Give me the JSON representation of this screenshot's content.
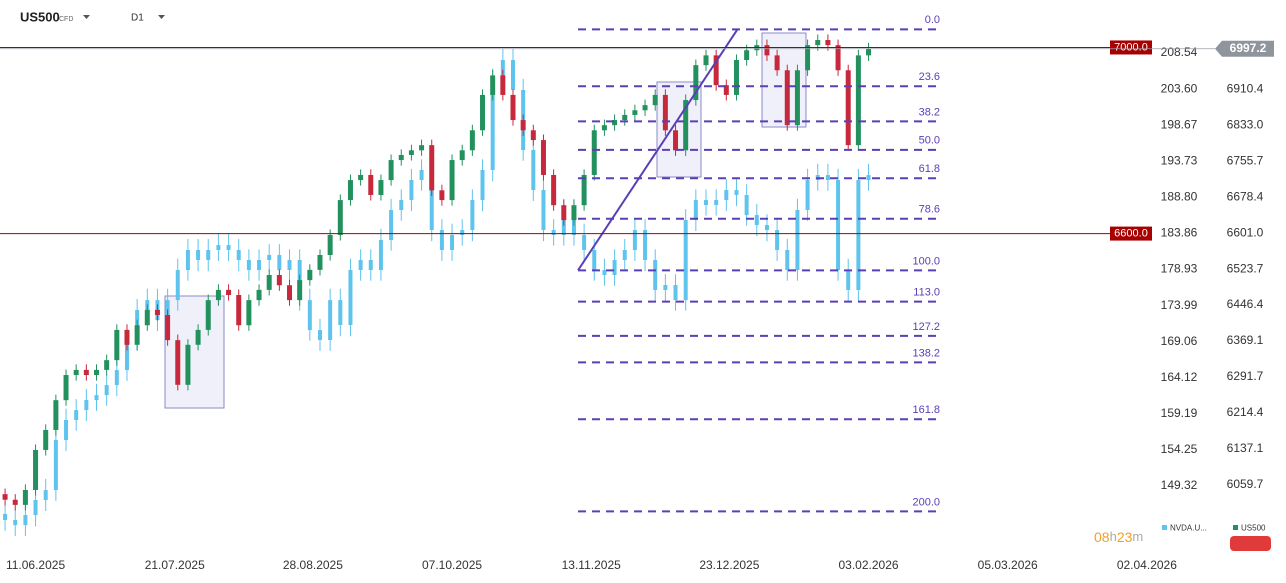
{
  "chart_data": {
    "type": "candlestick",
    "title": "US500",
    "title_note": "CFD",
    "timeframe": "D1",
    "xlim": [
      -0.5,
      113.2
    ],
    "xticks": [
      {
        "value": 3,
        "label": "11.06.2025"
      },
      {
        "value": 16.7,
        "label": "21.07.2025"
      },
      {
        "value": 30.3,
        "label": "28.08.2025"
      },
      {
        "value": 44,
        "label": "07.10.2025"
      },
      {
        "value": 57.7,
        "label": "13.11.2025"
      },
      {
        "value": 71.3,
        "label": "23.12.2025"
      },
      {
        "value": 85,
        "label": "03.02.2026"
      },
      {
        "value": 98.7,
        "label": "05.03.2026"
      },
      {
        "value": 112.4,
        "label": "02.04.2026"
      }
    ],
    "ylim": [
      140.57,
      215.79
    ],
    "yticks": [
      208.54,
      {
        "value": 203.6,
        "label": "203.60"
      },
      198.67,
      193.73,
      {
        "value": 188.8,
        "label": "188.80"
      },
      183.86,
      178.93,
      173.99,
      169.06,
      164.12,
      159.19,
      154.25,
      149.32
    ],
    "y2lim": [
      5920,
      7102
    ],
    "y2ticks": [
      6910.4,
      {
        "value": 6833,
        "label": "6833.0"
      },
      6755.7,
      6678.4,
      {
        "value": 6601,
        "label": "6601.0"
      },
      6523.7,
      6446.4,
      6369.1,
      6291.7,
      6214.4,
      6137.1,
      6059.7
    ],
    "series": [
      {
        "name": "NVDA.U...",
        "color": "#5ec4ee",
        "axis": "y",
        "ohlc": [
          [
            145.5,
            147.0,
            143.2,
            144.67
          ],
          [
            144.67,
            146.2,
            142.5,
            143.98
          ],
          [
            143.98,
            146.9,
            142.5,
            145.35
          ],
          [
            145.35,
            148.9,
            143.8,
            147.41
          ],
          [
            147.41,
            150.3,
            145.9,
            148.77
          ],
          [
            148.77,
            157.1,
            147.3,
            155.61
          ],
          [
            155.61,
            159.9,
            154.1,
            158.35
          ],
          [
            158.35,
            161.2,
            156.9,
            159.71
          ],
          [
            159.71,
            162.6,
            158.2,
            161.08
          ],
          [
            161.08,
            163.3,
            159.6,
            161.76
          ],
          [
            161.76,
            164.6,
            160.3,
            163.13
          ],
          [
            163.13,
            166.7,
            161.6,
            165.18
          ],
          [
            165.18,
            170.8,
            163.7,
            169.29
          ],
          [
            169.29,
            174.9,
            167.8,
            173.39
          ],
          [
            173.39,
            176.3,
            171.9,
            174.75
          ],
          [
            174.75,
            176.3,
            170.5,
            172.02
          ],
          [
            172.02,
            176.3,
            170.5,
            174.75
          ],
          [
            174.75,
            180.4,
            173.3,
            178.86
          ],
          [
            178.86,
            183.1,
            177.4,
            181.6
          ],
          [
            181.6,
            183.1,
            178.7,
            180.23
          ],
          [
            180.23,
            183.1,
            178.7,
            181.6
          ],
          [
            181.6,
            183.8,
            180.1,
            182.28
          ],
          [
            182.28,
            183.8,
            180.1,
            181.6
          ],
          [
            181.6,
            183.1,
            178.7,
            180.23
          ],
          [
            180.23,
            181.7,
            177.4,
            178.86
          ],
          [
            178.86,
            181.7,
            177.4,
            180.23
          ],
          [
            180.23,
            182.4,
            178.7,
            180.91
          ],
          [
            180.91,
            182.4,
            177.4,
            178.86
          ],
          [
            178.86,
            181.7,
            177.4,
            180.23
          ],
          [
            180.23,
            181.7,
            173.3,
            174.75
          ],
          [
            174.75,
            176.3,
            169.2,
            170.65
          ],
          [
            170.65,
            172.2,
            167.8,
            169.29
          ],
          [
            169.29,
            176.3,
            167.8,
            174.75
          ],
          [
            174.75,
            176.3,
            169.8,
            171.34
          ],
          [
            171.34,
            180.4,
            169.8,
            178.86
          ],
          [
            178.86,
            181.7,
            177.4,
            180.23
          ],
          [
            180.23,
            181.7,
            177.4,
            178.86
          ],
          [
            178.86,
            184.5,
            177.4,
            182.96
          ],
          [
            182.96,
            188.6,
            181.5,
            187.07
          ],
          [
            187.07,
            189.9,
            185.6,
            188.43
          ],
          [
            188.43,
            192.7,
            186.9,
            191.17
          ],
          [
            191.17,
            194.0,
            189.7,
            192.54
          ],
          [
            192.54,
            194.0,
            182.8,
            184.33
          ],
          [
            184.33,
            185.8,
            180.1,
            181.6
          ],
          [
            181.6,
            185.2,
            180.1,
            183.65
          ],
          [
            183.65,
            185.8,
            182.2,
            184.33
          ],
          [
            184.33,
            189.9,
            182.8,
            188.43
          ],
          [
            188.43,
            194.0,
            186.9,
            192.54
          ],
          [
            192.54,
            206.4,
            191.0,
            204.85
          ],
          [
            204.85,
            209.1,
            203.4,
            207.58
          ],
          [
            207.58,
            209.1,
            202.0,
            203.48
          ],
          [
            203.48,
            205.0,
            193.8,
            195.27
          ],
          [
            195.27,
            196.8,
            188.3,
            189.8
          ],
          [
            189.8,
            191.3,
            182.8,
            184.33
          ],
          [
            184.33,
            185.8,
            182.2,
            183.65
          ],
          [
            183.65,
            188.6,
            182.2,
            187.07
          ],
          [
            187.07,
            188.6,
            182.2,
            183.65
          ],
          [
            183.65,
            185.2,
            180.1,
            181.6
          ],
          [
            181.6,
            183.1,
            177.4,
            178.86
          ],
          [
            178.86,
            180.4,
            176.7,
            178.18
          ],
          [
            178.18,
            181.7,
            176.7,
            180.23
          ],
          [
            180.23,
            183.1,
            178.7,
            181.6
          ],
          [
            181.6,
            185.8,
            180.1,
            184.33
          ],
          [
            184.33,
            185.8,
            178.7,
            180.23
          ],
          [
            180.23,
            181.7,
            174.6,
            176.13
          ],
          [
            176.13,
            178.3,
            174.6,
            176.81
          ],
          [
            176.81,
            178.3,
            173.3,
            174.75
          ],
          [
            174.75,
            187.2,
            173.3,
            185.7
          ],
          [
            185.7,
            189.9,
            184.2,
            188.43
          ],
          [
            188.43,
            189.9,
            186.3,
            187.75
          ],
          [
            187.75,
            189.9,
            186.3,
            188.43
          ],
          [
            188.43,
            191.3,
            186.9,
            189.8
          ],
          [
            189.8,
            191.3,
            187.6,
            189.12
          ],
          [
            189.12,
            190.6,
            184.9,
            186.38
          ],
          [
            186.38,
            187.9,
            183.5,
            185.01
          ],
          [
            185.01,
            186.5,
            182.8,
            184.33
          ],
          [
            184.33,
            185.8,
            180.1,
            181.6
          ],
          [
            181.6,
            183.1,
            177.4,
            178.86
          ],
          [
            178.86,
            188.6,
            177.4,
            187.07
          ],
          [
            187.07,
            192.7,
            185.6,
            191.17
          ],
          [
            191.17,
            193.4,
            189.7,
            191.85
          ],
          [
            191.85,
            193.4,
            189.7,
            191.17
          ],
          [
            191.17,
            192.7,
            177.4,
            178.86
          ],
          [
            178.86,
            180.4,
            174.6,
            176.13
          ],
          [
            176.13,
            192.7,
            174.6,
            191.17
          ],
          [
            191.17,
            193.4,
            189.7,
            191.85
          ]
        ]
      },
      {
        "name": "US500",
        "color": "#22915e",
        "color_down": "#c8283c",
        "axis": "y2",
        "ohlc": [
          [
            6040,
            6052,
            6016,
            6028
          ],
          [
            6028,
            6040,
            6005,
            6017
          ],
          [
            6017,
            6061,
            6005,
            6049
          ],
          [
            6049,
            6147,
            6037,
            6135
          ],
          [
            6135,
            6190,
            6123,
            6178
          ],
          [
            6178,
            6254,
            6166,
            6242
          ],
          [
            6242,
            6308,
            6230,
            6296
          ],
          [
            6296,
            6319,
            6284,
            6307
          ],
          [
            6307,
            6319,
            6284,
            6296
          ],
          [
            6296,
            6319,
            6284,
            6307
          ],
          [
            6307,
            6340,
            6295,
            6328
          ],
          [
            6328,
            6405,
            6316,
            6393
          ],
          [
            6393,
            6405,
            6349,
            6361
          ],
          [
            6361,
            6415,
            6349,
            6403
          ],
          [
            6403,
            6448,
            6391,
            6436
          ],
          [
            6436,
            6448,
            6413,
            6425
          ],
          [
            6425,
            6437,
            6359,
            6371
          ],
          [
            6371,
            6383,
            6263,
            6275
          ],
          [
            6275,
            6373,
            6263,
            6361
          ],
          [
            6361,
            6405,
            6349,
            6393
          ],
          [
            6393,
            6469,
            6381,
            6457
          ],
          [
            6457,
            6491,
            6445,
            6479
          ],
          [
            6479,
            6491,
            6456,
            6468
          ],
          [
            6468,
            6480,
            6391,
            6403
          ],
          [
            6403,
            6469,
            6391,
            6457
          ],
          [
            6457,
            6491,
            6445,
            6479
          ],
          [
            6479,
            6523,
            6467,
            6511
          ],
          [
            6511,
            6523,
            6477,
            6489
          ],
          [
            6489,
            6501,
            6445,
            6457
          ],
          [
            6457,
            6512,
            6445,
            6500
          ],
          [
            6500,
            6534,
            6488,
            6522
          ],
          [
            6522,
            6566,
            6510,
            6554
          ],
          [
            6554,
            6609,
            6542,
            6597
          ],
          [
            6597,
            6684,
            6585,
            6672
          ],
          [
            6672,
            6727,
            6660,
            6715
          ],
          [
            6715,
            6738,
            6703,
            6726
          ],
          [
            6726,
            6738,
            6671,
            6683
          ],
          [
            6683,
            6727,
            6671,
            6715
          ],
          [
            6715,
            6770,
            6703,
            6758
          ],
          [
            6758,
            6781,
            6746,
            6769
          ],
          [
            6769,
            6791,
            6757,
            6779
          ],
          [
            6779,
            6802,
            6767,
            6790
          ],
          [
            6790,
            6802,
            6681,
            6693
          ],
          [
            6693,
            6705,
            6660,
            6672
          ],
          [
            6672,
            6770,
            6660,
            6758
          ],
          [
            6758,
            6791,
            6746,
            6779
          ],
          [
            6779,
            6834,
            6767,
            6822
          ],
          [
            6822,
            6910,
            6810,
            6898
          ],
          [
            6898,
            6952,
            6886,
            6940
          ],
          [
            6940,
            6952,
            6886,
            6898
          ],
          [
            6898,
            6910,
            6832,
            6844
          ],
          [
            6844,
            6856,
            6810,
            6822
          ],
          [
            6822,
            6834,
            6789,
            6801
          ],
          [
            6801,
            6813,
            6714,
            6726
          ],
          [
            6726,
            6738,
            6649,
            6661
          ],
          [
            6661,
            6673,
            6617,
            6629
          ],
          [
            6629,
            6673,
            6617,
            6661
          ],
          [
            6661,
            6738,
            6649,
            6726
          ],
          [
            6726,
            6834,
            6714,
            6822
          ],
          [
            6822,
            6845,
            6810,
            6833
          ],
          [
            6833,
            6856,
            6821,
            6844
          ],
          [
            6844,
            6867,
            6832,
            6855
          ],
          [
            6855,
            6877,
            6843,
            6865
          ],
          [
            6865,
            6888,
            6853,
            6876
          ],
          [
            6876,
            6910,
            6864,
            6898
          ],
          [
            6898,
            6910,
            6810,
            6822
          ],
          [
            6822,
            6834,
            6767,
            6779
          ],
          [
            6779,
            6899,
            6767,
            6887
          ],
          [
            6887,
            6974,
            6875,
            6962
          ],
          [
            6962,
            6995,
            6950,
            6983
          ],
          [
            6983,
            6995,
            6907,
            6919
          ],
          [
            6919,
            6931,
            6886,
            6898
          ],
          [
            6898,
            6985,
            6886,
            6973
          ],
          [
            6973,
            7006,
            6961,
            6994
          ],
          [
            6994,
            7017,
            6982,
            7005
          ],
          [
            7005,
            7017,
            6971,
            6983
          ],
          [
            6983,
            6995,
            6939,
            6951
          ],
          [
            6951,
            6963,
            6821,
            6833
          ],
          [
            6833,
            6963,
            6821,
            6951
          ],
          [
            6951,
            7017,
            6939,
            7005
          ],
          [
            7005,
            7028,
            6993,
            7016
          ],
          [
            7016,
            7028,
            6993,
            7005
          ],
          [
            7005,
            7017,
            6939,
            6951
          ],
          [
            6951,
            6963,
            6778,
            6790
          ],
          [
            6790,
            6995,
            6778,
            6983
          ],
          [
            6983,
            7010,
            6971,
            6997.2
          ]
        ]
      }
    ],
    "levels": [
      {
        "value": 7000,
        "label": "7000.0"
      },
      {
        "value": 6600,
        "label": "6600.0"
      }
    ],
    "level_color": "#a80000",
    "last_price": 6997.2,
    "fibonacci": {
      "color": "#5b3fb5",
      "start_x": 56.4,
      "end_x": 72.1,
      "high": 7039,
      "low": 6521,
      "levels": [
        {
          "value": 0,
          "label": "0.0"
        },
        23.6,
        38.2,
        {
          "value": 50,
          "label": "50.0"
        },
        61.8,
        78.6,
        {
          "value": 100,
          "label": "100.0"
        },
        {
          "value": 113,
          "label": "113.0"
        },
        127.2,
        138.2,
        161.8,
        {
          "value": 200,
          "label": "200.0"
        }
      ]
    },
    "timer": [
      "08",
      "h",
      "23",
      "m"
    ]
  }
}
